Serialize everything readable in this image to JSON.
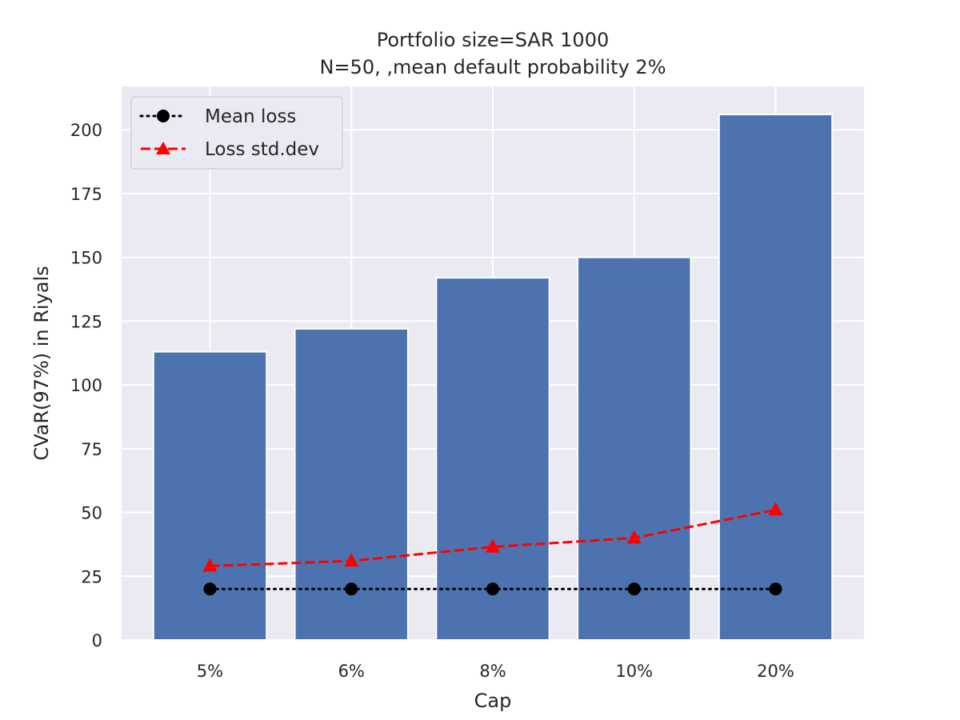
{
  "chart_data": {
    "type": "bar",
    "title_line1": "Portfolio size=SAR 1000",
    "title_line2": "N=50, ,mean default probability 2%",
    "xlabel": "Cap",
    "ylabel": "CVaR(97%) in Riyals",
    "categories": [
      "5%",
      "6%",
      "8%",
      "10%",
      "20%"
    ],
    "values": [
      113,
      122,
      142,
      150,
      206
    ],
    "bar_color": "#4c72b0",
    "ylim": [
      0,
      217
    ],
    "yticks": [
      0,
      25,
      50,
      75,
      100,
      125,
      150,
      175,
      200
    ],
    "grid": true,
    "legend_position": "top-left",
    "series": [
      {
        "name": "Mean loss",
        "values": [
          20,
          20,
          20,
          20,
          20
        ],
        "color": "#000000",
        "style": "dotted",
        "marker": "circle"
      },
      {
        "name": "Loss std.dev",
        "values": [
          29,
          31,
          36.5,
          40,
          51
        ],
        "color": "#ff0000",
        "style": "dashed",
        "marker": "triangle"
      }
    ]
  }
}
